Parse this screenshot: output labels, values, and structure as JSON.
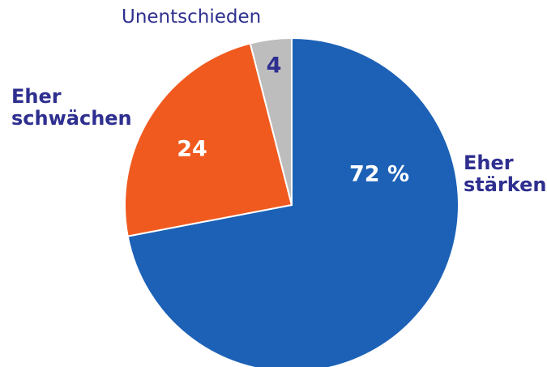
{
  "chart_data": {
    "type": "pie",
    "categories": [
      "Eher stärken",
      "Eher schwächen",
      "Unentschieden"
    ],
    "values": [
      72,
      24,
      4
    ],
    "value_labels": [
      "72 %",
      "24",
      "4"
    ],
    "colors": [
      "#1c61b6",
      "#f15a1f",
      "#bdbdbd"
    ]
  }
}
